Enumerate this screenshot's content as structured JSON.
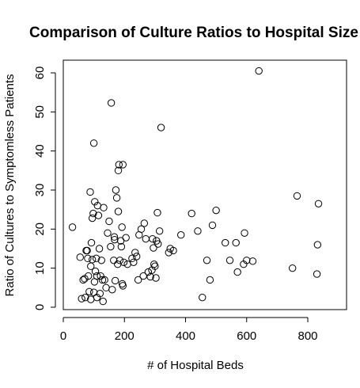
{
  "chart_data": {
    "type": "scatter",
    "title": "Comparison of Culture Ratios to Hospital Size",
    "xlabel": "# of Hospital Beds",
    "ylabel": "Ratio of Cultures to Symptomless Patients",
    "xlim": [
      0,
      850
    ],
    "ylim": [
      0,
      62
    ],
    "xticks": [
      0,
      200,
      400,
      600,
      800
    ],
    "yticks": [
      0,
      10,
      20,
      30,
      40,
      50,
      60
    ],
    "xtick_labels": [
      "0",
      "200",
      "400",
      "600",
      "800"
    ],
    "ytick_labels": [
      "0",
      "10",
      "20",
      "30",
      "40",
      "50",
      "60"
    ],
    "marker": "open-circle",
    "grid": false,
    "points": [
      [
        30,
        20.5
      ],
      [
        55,
        12.8
      ],
      [
        60,
        2.2
      ],
      [
        65,
        7.0
      ],
      [
        70,
        7.3
      ],
      [
        72,
        2.5
      ],
      [
        75,
        14.5
      ],
      [
        78,
        14.5
      ],
      [
        80,
        12.5
      ],
      [
        82,
        8.0
      ],
      [
        85,
        4.0
      ],
      [
        88,
        29.5
      ],
      [
        90,
        2.0
      ],
      [
        90,
        10.5
      ],
      [
        92,
        16.5
      ],
      [
        95,
        12.2
      ],
      [
        95,
        22.8
      ],
      [
        98,
        24.0
      ],
      [
        100,
        3.8
      ],
      [
        100,
        42.0
      ],
      [
        102,
        6.5
      ],
      [
        103,
        27.0
      ],
      [
        105,
        9.2
      ],
      [
        108,
        12.5
      ],
      [
        110,
        8.0
      ],
      [
        110,
        2.5
      ],
      [
        112,
        26.0
      ],
      [
        115,
        23.5
      ],
      [
        118,
        15.0
      ],
      [
        120,
        3.5
      ],
      [
        122,
        8.0
      ],
      [
        125,
        12.0
      ],
      [
        128,
        7.0
      ],
      [
        130,
        1.5
      ],
      [
        132,
        25.5
      ],
      [
        135,
        7.0
      ],
      [
        140,
        5.0
      ],
      [
        145,
        19.0
      ],
      [
        150,
        22.0
      ],
      [
        155,
        15.5
      ],
      [
        157,
        52.3
      ],
      [
        160,
        4.5
      ],
      [
        165,
        12.0
      ],
      [
        167,
        18.0
      ],
      [
        168,
        17.3
      ],
      [
        170,
        6.8
      ],
      [
        172,
        30.0
      ],
      [
        175,
        28.0
      ],
      [
        178,
        11.0
      ],
      [
        180,
        24.5
      ],
      [
        180,
        35.0
      ],
      [
        182,
        36.5
      ],
      [
        185,
        12.0
      ],
      [
        188,
        17.0
      ],
      [
        190,
        15.5
      ],
      [
        192,
        20.5
      ],
      [
        193,
        6.0
      ],
      [
        195,
        5.5
      ],
      [
        195,
        36.5
      ],
      [
        198,
        11.5
      ],
      [
        205,
        17.8
      ],
      [
        210,
        11.0
      ],
      [
        225,
        12.5
      ],
      [
        230,
        11.5
      ],
      [
        235,
        14.0
      ],
      [
        240,
        13.0
      ],
      [
        245,
        7.0
      ],
      [
        248,
        18.5
      ],
      [
        255,
        20.0
      ],
      [
        262,
        8.0
      ],
      [
        265,
        21.5
      ],
      [
        270,
        17.5
      ],
      [
        278,
        9.0
      ],
      [
        285,
        7.8
      ],
      [
        290,
        9.5
      ],
      [
        292,
        17.5
      ],
      [
        295,
        15.2
      ],
      [
        297,
        11.0
      ],
      [
        300,
        10.5
      ],
      [
        303,
        7.5
      ],
      [
        305,
        17.0
      ],
      [
        308,
        24.2
      ],
      [
        310,
        16.2
      ],
      [
        315,
        19.5
      ],
      [
        320,
        46.0
      ],
      [
        345,
        14.0
      ],
      [
        350,
        15.0
      ],
      [
        360,
        14.5
      ],
      [
        385,
        18.5
      ],
      [
        420,
        24.0
      ],
      [
        440,
        19.5
      ],
      [
        455,
        2.5
      ],
      [
        470,
        12.0
      ],
      [
        480,
        7.0
      ],
      [
        488,
        21.0
      ],
      [
        500,
        24.8
      ],
      [
        530,
        16.5
      ],
      [
        545,
        12.0
      ],
      [
        565,
        16.5
      ],
      [
        570,
        9.0
      ],
      [
        590,
        11.0
      ],
      [
        593,
        19.0
      ],
      [
        600,
        12.0
      ],
      [
        620,
        11.8
      ],
      [
        640,
        60.5
      ],
      [
        750,
        10.0
      ],
      [
        765,
        28.5
      ],
      [
        830,
        8.5
      ],
      [
        832,
        16.0
      ],
      [
        835,
        26.5
      ]
    ]
  }
}
